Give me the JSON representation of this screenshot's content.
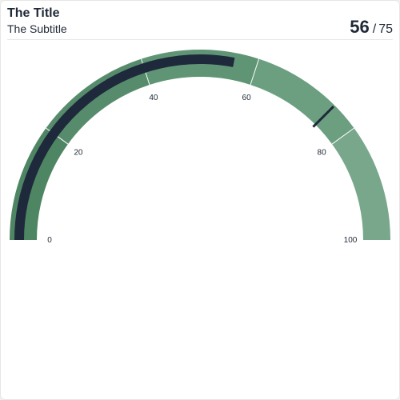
{
  "header": {
    "title": "The Title",
    "subtitle": "The Subtitle",
    "value": "56",
    "separator": "/",
    "target": "75"
  },
  "chart_data": {
    "type": "gauge",
    "min": 0,
    "max": 100,
    "value": 56,
    "target": 75,
    "ticks": [
      0,
      20,
      40,
      60,
      80,
      100
    ],
    "tick_labels": [
      "0",
      "20",
      "40",
      "60",
      "80",
      "100"
    ],
    "bands": [
      {
        "from": 0,
        "to": 20,
        "color": "#4e8563"
      },
      {
        "from": 20,
        "to": 40,
        "color": "#568c6b"
      },
      {
        "from": 40,
        "to": 60,
        "color": "#5f9575"
      },
      {
        "from": 60,
        "to": 80,
        "color": "#6b9f80"
      },
      {
        "from": 80,
        "to": 100,
        "color": "#78a78b"
      }
    ],
    "value_bar_color": "#1e293b",
    "target_marker_color": "#1e293b",
    "band_divider_color": "#ffffff"
  }
}
